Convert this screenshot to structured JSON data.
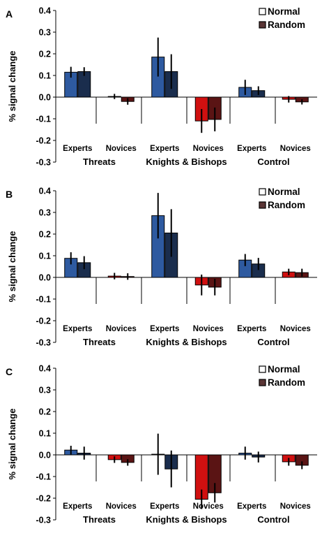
{
  "figure": {
    "group_labels": [
      "Threats",
      "Knights & Bishops",
      "Control"
    ],
    "subgroup_labels": [
      "Experts",
      "Novices"
    ],
    "colors": {
      "experts_normal": "#2e5aa0",
      "experts_random": "#1a2d4d",
      "novices_normal": "#d01010",
      "novices_random": "#5a1414"
    }
  },
  "chart_data": [
    {
      "type": "bar",
      "panel_label": "A",
      "ylabel": "% signal change",
      "ylim": [
        -0.3,
        0.4
      ],
      "yticks": [
        "-0.3",
        "-0.2",
        "-0.1",
        "0.0",
        "0.1",
        "0.2",
        "0.3",
        "0.4"
      ],
      "legend": [
        "Normal",
        "Random"
      ],
      "legend_position": "top-right",
      "categories": [
        "Threats Experts",
        "Threats Novices",
        "Knights & Bishops Experts",
        "Knights & Bishops Novices",
        "Control Experts",
        "Control Novices"
      ],
      "series": [
        {
          "name": "Normal",
          "values": [
            0.115,
            0.003,
            0.185,
            -0.11,
            0.045,
            -0.01
          ],
          "errors": [
            0.025,
            0.012,
            0.09,
            0.055,
            0.035,
            0.015
          ]
        },
        {
          "name": "Random",
          "values": [
            0.118,
            -0.02,
            0.118,
            -0.103,
            0.03,
            -0.022
          ],
          "errors": [
            0.02,
            0.015,
            0.08,
            0.055,
            0.02,
            0.012
          ]
        }
      ]
    },
    {
      "type": "bar",
      "panel_label": "B",
      "ylabel": "% signal change",
      "ylim": [
        -0.3,
        0.4
      ],
      "yticks": [
        "-0.3",
        "-0.2",
        "-0.1",
        "0.0",
        "0.1",
        "0.2",
        "0.3",
        "0.4"
      ],
      "legend": [
        "Normal",
        "Random"
      ],
      "legend_position": "top-right",
      "categories": [
        "Threats Experts",
        "Threats Novices",
        "Knights & Bishops Experts",
        "Knights & Bishops Novices",
        "Control Experts",
        "Control Novices"
      ],
      "series": [
        {
          "name": "Normal",
          "values": [
            0.088,
            0.006,
            0.285,
            -0.035,
            0.08,
            0.025
          ],
          "errors": [
            0.028,
            0.015,
            0.105,
            0.048,
            0.028,
            0.015
          ]
        },
        {
          "name": "Random",
          "values": [
            0.068,
            0.004,
            0.205,
            -0.045,
            0.062,
            0.022
          ],
          "errors": [
            0.03,
            0.015,
            0.11,
            0.038,
            0.028,
            0.018
          ]
        }
      ]
    },
    {
      "type": "bar",
      "panel_label": "C",
      "ylabel": "% signal change",
      "ylim": [
        -0.3,
        0.4
      ],
      "yticks": [
        "-0.3",
        "-0.2",
        "-0.1",
        "0.0",
        "0.1",
        "0.2",
        "0.3",
        "0.4"
      ],
      "legend": [
        "Normal",
        "Random"
      ],
      "legend_position": "top-right",
      "categories": [
        "Threats Experts",
        "Threats Novices",
        "Knights & Bishops Experts",
        "Knights & Bishops Novices",
        "Control Experts",
        "Control Novices"
      ],
      "series": [
        {
          "name": "Normal",
          "values": [
            0.022,
            -0.022,
            0.003,
            -0.205,
            0.008,
            -0.032
          ],
          "errors": [
            0.02,
            0.015,
            0.095,
            0.045,
            0.03,
            0.018
          ]
        },
        {
          "name": "Random",
          "values": [
            0.008,
            -0.035,
            -0.065,
            -0.175,
            -0.01,
            -0.048
          ],
          "errors": [
            0.03,
            0.015,
            0.085,
            0.045,
            0.025,
            0.018
          ]
        }
      ]
    }
  ]
}
